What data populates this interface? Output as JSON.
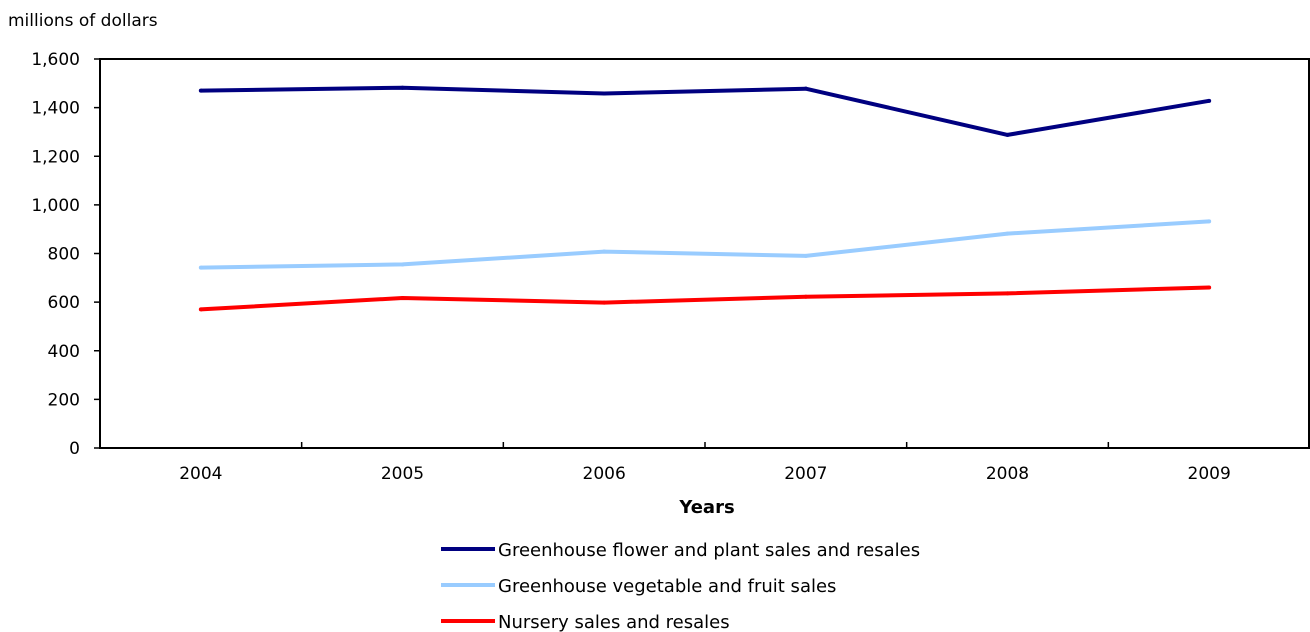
{
  "chart_data": {
    "type": "line",
    "title": "",
    "unit_label": "millions of dollars",
    "xlabel": "Years",
    "ylabel": "",
    "ylim": [
      0,
      1600
    ],
    "yticks": [
      0,
      200,
      400,
      600,
      800,
      1000,
      1200,
      1400,
      1600
    ],
    "ytick_labels": [
      "0",
      "200",
      "400",
      "600",
      "800",
      "1,000",
      "1,200",
      "1,400",
      "1,600"
    ],
    "categories": [
      "2004",
      "2005",
      "2006",
      "2007",
      "2008",
      "2009"
    ],
    "grid": false,
    "legend_position": "bottom",
    "series": [
      {
        "name": "Greenhouse flower and plant sales and resales",
        "color": "#000080",
        "values": [
          1470,
          1482,
          1458,
          1478,
          1288,
          1428
        ]
      },
      {
        "name": "Greenhouse vegetable and fruit sales",
        "color": "#99ccff",
        "values": [
          742,
          755,
          808,
          790,
          882,
          932
        ]
      },
      {
        "name": "Nursery sales and resales",
        "color": "#ff0000",
        "values": [
          570,
          617,
          598,
          622,
          636,
          660
        ]
      }
    ]
  }
}
